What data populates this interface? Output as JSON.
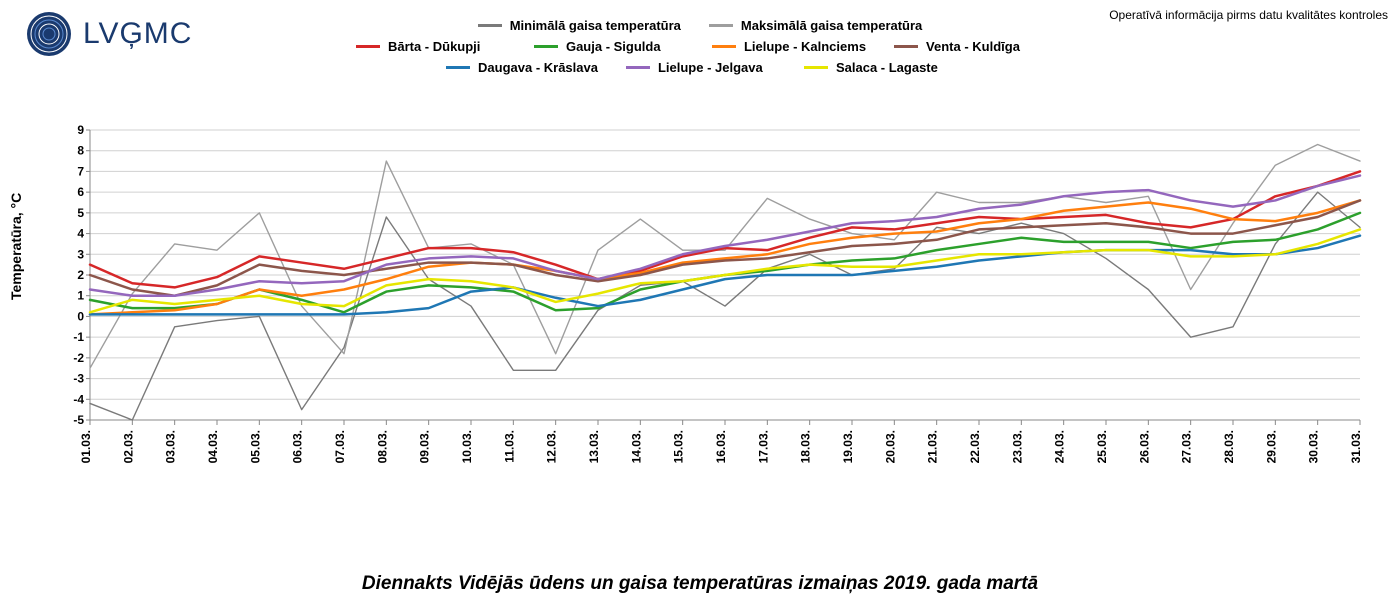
{
  "logo_text": "LVĢMC",
  "logo_color": "#1a3a6e",
  "top_note": "Operatīvā informācija pirms datu kvalitātes kontroles",
  "y_axis_label": "Temperatūra, °C",
  "title": "Diennakts Vidējās ūdens un gaisa temperatūras izmaiņas 2019. gada martā",
  "chart": {
    "type": "line",
    "background_color": "#ffffff",
    "grid_color": "#d0d0d0",
    "axis_color": "#888888",
    "tick_color": "#888888",
    "tick_font_size": 12,
    "tick_font_weight": "bold",
    "x_categories": [
      "01.03.",
      "02.03.",
      "03.03.",
      "04.03.",
      "05.03.",
      "06.03.",
      "07.03.",
      "08.03.",
      "09.03.",
      "10.03.",
      "11.03.",
      "12.03.",
      "13.03.",
      "14.03.",
      "15.03.",
      "16.03.",
      "17.03.",
      "18.03.",
      "19.03.",
      "20.03.",
      "21.03.",
      "22.03.",
      "23.03.",
      "24.03.",
      "25.03.",
      "26.03.",
      "27.03.",
      "28.03.",
      "29.03.",
      "30.03.",
      "31.03."
    ],
    "y_min": -5,
    "y_max": 9,
    "y_tick_step": 1,
    "line_width_main": 2.5,
    "line_width_air": 1.4,
    "legend_air": [
      {
        "label": "Minimālā gaisa temperatūra",
        "color": "#7a7a7a"
      },
      {
        "label": "Maksimālā gaisa temperatūra",
        "color": "#9e9e9e"
      }
    ],
    "legend_series": [
      {
        "key": "barta",
        "label": "Bārta - Dūkupji",
        "color": "#d62728"
      },
      {
        "key": "gauja",
        "label": "Gauja - Sigulda",
        "color": "#2ca02c"
      },
      {
        "key": "lielupeK",
        "label": "Lielupe - Kalnciems",
        "color": "#ff7f0e"
      },
      {
        "key": "venta",
        "label": "Venta - Kuldīga",
        "color": "#8c564b"
      },
      {
        "key": "daugava",
        "label": "Daugava - Krāslava",
        "color": "#1f77b4"
      },
      {
        "key": "lielupeJ",
        "label": "Lielupe - Jelgava",
        "color": "#9467bd"
      },
      {
        "key": "salaca",
        "label": "Salaca - Lagaste",
        "color": "#e6e600"
      }
    ],
    "series": {
      "min_air": [
        -4.2,
        -5.0,
        -0.5,
        -0.2,
        0.0,
        -4.5,
        -1.5,
        4.8,
        1.8,
        0.5,
        -2.6,
        -2.6,
        0.3,
        1.5,
        1.7,
        0.5,
        2.3,
        3.0,
        2.0,
        2.3,
        4.3,
        4.0,
        4.5,
        4.0,
        2.8,
        1.3,
        -1.0,
        -0.5,
        3.5,
        6.0,
        4.3
      ],
      "max_air": [
        -2.5,
        1.1,
        3.5,
        3.2,
        5.0,
        0.5,
        -1.8,
        7.5,
        3.3,
        3.5,
        2.5,
        -1.8,
        3.2,
        4.7,
        3.2,
        3.2,
        5.7,
        4.7,
        4.0,
        3.7,
        6.0,
        5.5,
        5.5,
        5.8,
        5.5,
        5.8,
        1.3,
        4.5,
        7.3,
        8.3,
        7.5
      ],
      "barta": [
        2.5,
        1.6,
        1.4,
        1.9,
        2.9,
        2.6,
        2.3,
        2.8,
        3.3,
        3.3,
        3.1,
        2.5,
        1.8,
        2.2,
        2.9,
        3.3,
        3.2,
        3.8,
        4.3,
        4.2,
        4.5,
        4.8,
        4.7,
        4.8,
        4.9,
        4.5,
        4.3,
        4.7,
        5.8,
        6.3,
        7.0
      ],
      "daugava": [
        0.1,
        0.1,
        0.1,
        0.1,
        0.1,
        0.1,
        0.1,
        0.2,
        0.4,
        1.2,
        1.4,
        0.9,
        0.5,
        0.8,
        1.3,
        1.8,
        2.0,
        2.0,
        2.0,
        2.2,
        2.4,
        2.7,
        2.9,
        3.1,
        3.2,
        3.2,
        3.2,
        3.0,
        3.0,
        3.3,
        3.9
      ],
      "gauja": [
        0.8,
        0.4,
        0.4,
        0.6,
        1.3,
        0.8,
        0.2,
        1.2,
        1.5,
        1.4,
        1.2,
        0.3,
        0.4,
        1.3,
        1.7,
        2.0,
        2.2,
        2.5,
        2.7,
        2.8,
        3.2,
        3.5,
        3.8,
        3.6,
        3.6,
        3.6,
        3.3,
        3.6,
        3.7,
        4.2,
        5.0
      ],
      "lielupeJ": [
        1.3,
        1.0,
        1.0,
        1.3,
        1.7,
        1.6,
        1.7,
        2.5,
        2.8,
        2.9,
        2.8,
        2.2,
        1.8,
        2.3,
        3.0,
        3.4,
        3.7,
        4.1,
        4.5,
        4.6,
        4.8,
        5.2,
        5.4,
        5.8,
        6.0,
        6.1,
        5.6,
        5.3,
        5.6,
        6.3,
        6.8
      ],
      "lielupeK": [
        0.1,
        0.2,
        0.3,
        0.6,
        1.3,
        1.0,
        1.3,
        1.8,
        2.4,
        2.6,
        2.5,
        2.2,
        1.8,
        2.1,
        2.6,
        2.8,
        3.0,
        3.5,
        3.8,
        4.0,
        4.1,
        4.5,
        4.7,
        5.1,
        5.3,
        5.5,
        5.2,
        4.7,
        4.6,
        5.0,
        5.6
      ],
      "salaca": [
        0.2,
        0.8,
        0.6,
        0.8,
        1.0,
        0.6,
        0.5,
        1.5,
        1.8,
        1.7,
        1.4,
        0.7,
        1.1,
        1.6,
        1.7,
        2.0,
        2.3,
        2.5,
        2.4,
        2.4,
        2.7,
        3.0,
        3.0,
        3.1,
        3.2,
        3.2,
        2.9,
        2.9,
        3.0,
        3.5,
        4.2
      ],
      "venta": [
        2.0,
        1.3,
        1.0,
        1.5,
        2.5,
        2.2,
        2.0,
        2.3,
        2.6,
        2.6,
        2.5,
        2.0,
        1.7,
        2.0,
        2.5,
        2.7,
        2.8,
        3.1,
        3.4,
        3.5,
        3.7,
        4.2,
        4.3,
        4.4,
        4.5,
        4.3,
        4.0,
        4.0,
        4.4,
        4.8,
        5.6
      ]
    }
  }
}
